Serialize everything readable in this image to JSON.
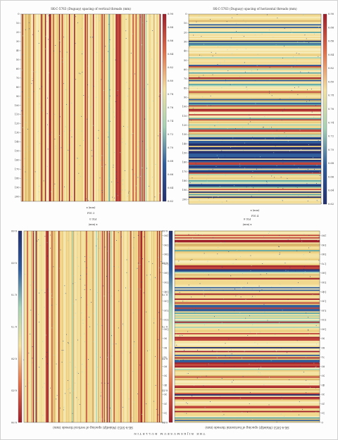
{
  "page": {
    "footer": "THE RIJKSMUSEUM BULLETIN"
  },
  "panels": [
    {
      "title": "SK-C-5763 (Duguay) spacing of vertical threads (mm)",
      "x_label": "x (mm)",
      "caption": "FIG 3",
      "y_ticks": [
        0,
        10,
        20,
        30,
        40,
        50,
        60,
        70,
        80,
        90,
        100,
        110,
        120,
        130,
        140,
        150,
        160,
        170,
        180,
        190,
        200
      ],
      "colorbar_ticks": [
        "0.90",
        "0.88",
        "0.86",
        "0.84",
        "0.82",
        "0.80",
        "0.78",
        "0.76",
        "0.74",
        "0.72",
        "0.70",
        "0.68",
        "0.66",
        "0.64",
        "0.62"
      ]
    },
    {
      "title": "SK-C-5763 (Duguay) spacing of horizontal threads (mm)",
      "x_label": "x (mm)",
      "caption": "FIG 4",
      "y_ticks": [
        0,
        10,
        20,
        30,
        40,
        50,
        60,
        70,
        80,
        90,
        100,
        110,
        120,
        130,
        140,
        150,
        160,
        170,
        180,
        190,
        200
      ],
      "colorbar_ticks": [
        "0.90",
        "0.88",
        "0.86",
        "0.84",
        "0.82",
        "0.80",
        "0.78",
        "0.76",
        "0.74",
        "0.72",
        "0.70",
        "0.68",
        "0.66",
        "0.64",
        "0.62"
      ]
    },
    {
      "title": "SK-A-5053 (Malefijt) spacing of vertical threads (mm)",
      "x_label": "x (mm)",
      "caption": "FIG 5",
      "y_ticks": [
        0,
        10,
        20,
        30,
        40,
        50,
        60,
        70,
        80,
        90,
        100,
        110,
        120,
        130,
        140,
        150,
        160,
        170,
        180,
        190,
        200
      ],
      "colorbar_ticks": [
        "0.90",
        "0.85",
        "0.80",
        "0.75",
        "0.70",
        "0.65",
        "0.60"
      ]
    },
    {
      "title": "SK-A-5053 (Malefijt) spacing of horizontal threads (mm)",
      "x_label": "x (mm)",
      "caption": "FIG 6",
      "y_ticks": [
        0,
        10,
        20,
        30,
        40,
        50,
        60,
        70,
        80,
        90,
        100,
        110,
        120,
        130,
        140,
        150,
        160,
        170,
        180,
        190,
        200
      ],
      "colorbar_ticks": [
        "0.90",
        "0.85",
        "0.80",
        "0.75",
        "0.70",
        "0.65",
        "0.60"
      ]
    }
  ]
}
